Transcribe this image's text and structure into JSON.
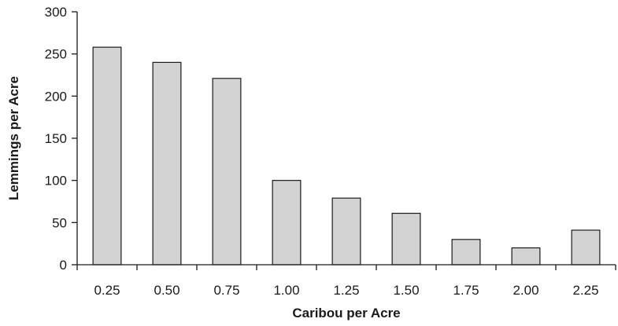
{
  "chart_data": {
    "type": "bar",
    "categories": [
      "0.25",
      "0.50",
      "0.75",
      "1.00",
      "1.25",
      "1.50",
      "1.75",
      "2.00",
      "2.25"
    ],
    "values": [
      258,
      240,
      221,
      100,
      79,
      61,
      30,
      20,
      41
    ],
    "xlabel": "Caribou per Acre",
    "ylabel": "Lemmings per Acre",
    "ylim": [
      0,
      300
    ],
    "yticks": [
      "0",
      "50",
      "100",
      "150",
      "200",
      "250",
      "300"
    ],
    "grid": false,
    "bar_color": "#d3d3d3",
    "edge_color": "#1a1a1a"
  }
}
